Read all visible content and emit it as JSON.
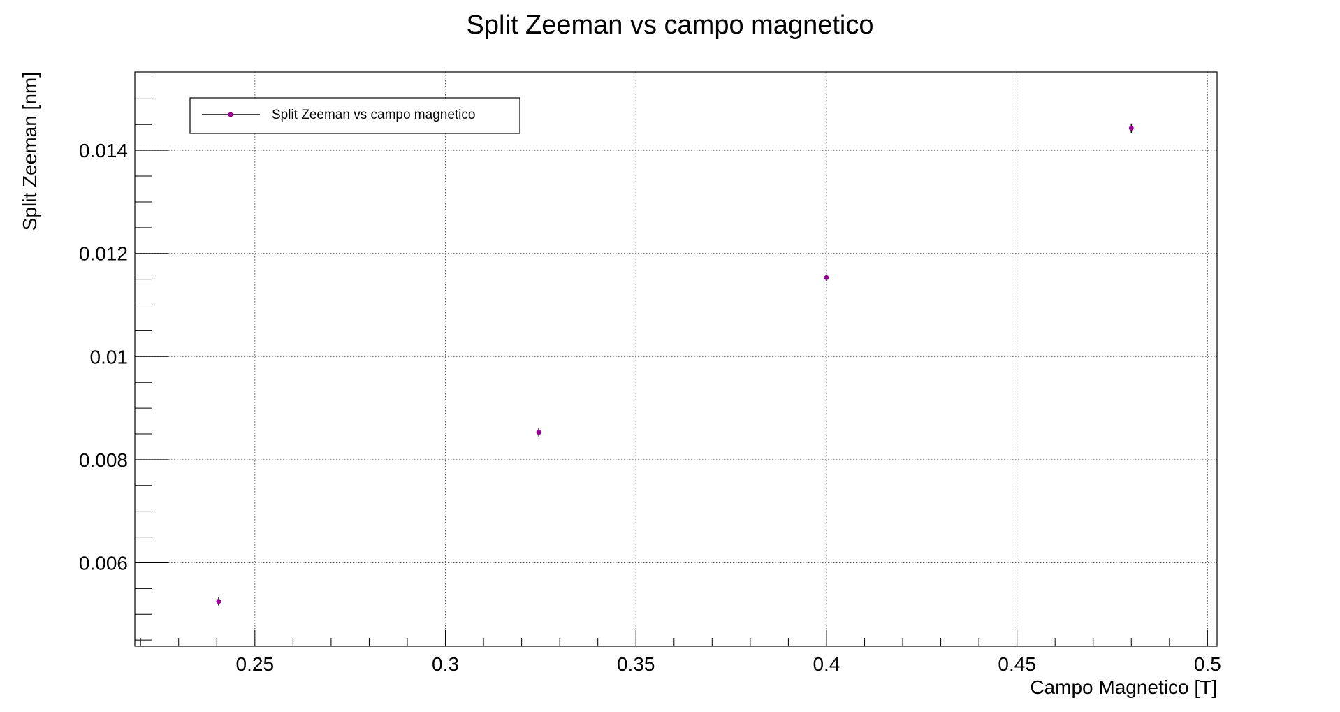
{
  "chart_data": {
    "type": "scatter",
    "title": "Split Zeeman vs campo magnetico",
    "xlabel": "Campo Magnetico [T]",
    "ylabel": "Split Zeeman [nm]",
    "xlim": [
      0.2185,
      0.5025
    ],
    "ylim": [
      0.00438,
      0.01552
    ],
    "x_ticks": [
      0.25,
      0.3,
      0.35,
      0.4,
      0.45,
      0.5
    ],
    "x_tick_labels": [
      "0.25",
      "0.3",
      "0.35",
      "0.4",
      "0.45",
      "0.5"
    ],
    "y_ticks": [
      0.006,
      0.008,
      0.01,
      0.012,
      0.014
    ],
    "y_tick_labels": [
      "0.006",
      "0.008",
      "0.01",
      "0.012",
      "0.014"
    ],
    "grid": true,
    "legend_position": "top-left",
    "series": [
      {
        "name": "Split Zeeman vs campo magnetico",
        "color": "#990099",
        "line_color": "#000000",
        "points": [
          {
            "x": 0.2405,
            "y": 0.00525,
            "xerr": 0.0004,
            "yerr": 8e-05
          },
          {
            "x": 0.3245,
            "y": 0.00853,
            "xerr": 0.0004,
            "yerr": 8e-05
          },
          {
            "x": 0.4,
            "y": 0.01153,
            "xerr": 0.0004,
            "yerr": 6e-05
          },
          {
            "x": 0.48,
            "y": 0.01443,
            "xerr": 0.0004,
            "yerr": 9e-05
          }
        ]
      }
    ]
  }
}
